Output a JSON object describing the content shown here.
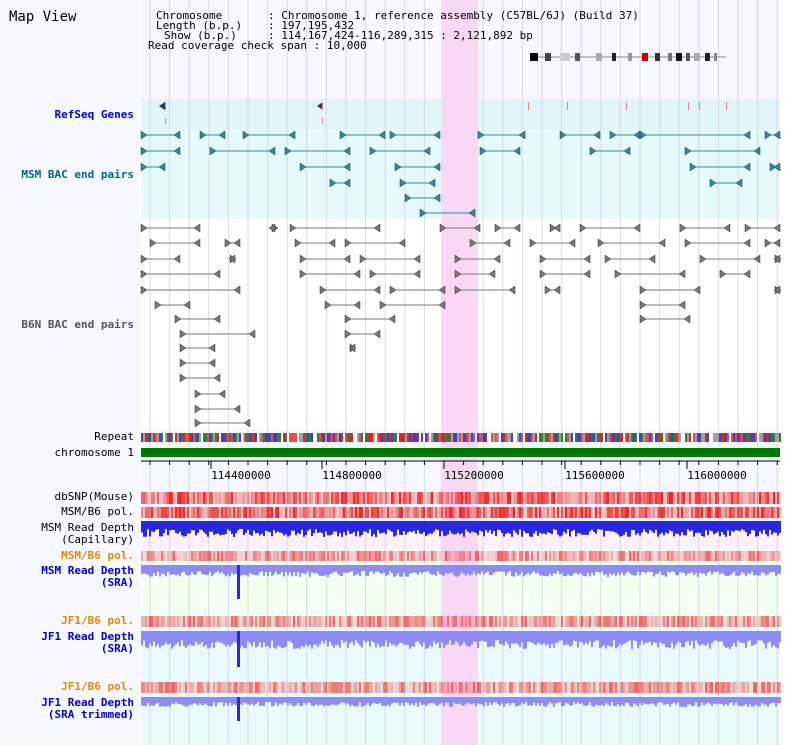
{
  "page_title": "Map View",
  "info": {
    "chromosome_label": "Chromosome",
    "chromosome_value": "Chromosome 1, reference assembly (C57BL/6J) (Build 37)",
    "length_label": "Length (b.p.)",
    "length_value": "197,195,432",
    "show_label": "Show (b.p.)",
    "show_value": "114,167,424-116,289,315 : 2,121,892 bp",
    "coverage_label": "Read coverage check span",
    "coverage_value": "10,000"
  },
  "tracks": {
    "refseq": "RefSeq Genes",
    "msm_bac": "MSM BAC end pairs",
    "b6n_bac": "B6N BAC end pairs",
    "repeat": "Repeat",
    "chromosome": "chromosome 1",
    "dbsnp": "dbSNP(Mouse)",
    "msm_b6_pol_1": "MSM/B6 pol.",
    "msm_read_depth_cap_1": "MSM Read Depth",
    "msm_read_depth_cap_2": "(Capillary)",
    "msm_b6_pol_2": "MSM/B6 pol.",
    "msm_read_depth_sra_1": "MSM Read Depth",
    "msm_read_depth_sra_2": "(SRA)",
    "jf1_b6_pol_1": "JF1/B6 pol.",
    "jf1_read_depth_sra_1": "JF1 Read Depth",
    "jf1_read_depth_sra_2": "(SRA)",
    "jf1_b6_pol_2": "JF1/B6 pol.",
    "jf1_read_depth_trim_1": "JF1 Read Depth",
    "jf1_read_depth_trim_2": "(SRA trimmed)"
  },
  "axis": {
    "ticks": [
      "114400000",
      "114800000",
      "115200000",
      "115600000",
      "116000000"
    ]
  },
  "colors": {
    "refseq_bg": "#e0f4fa",
    "msm_bg": "#e6fafa",
    "highlight": "#f8d8f4",
    "chromosome_bar": "#007700",
    "depth_blue": "#2828e0",
    "depth_light": "#8c8cf4",
    "snp_red": "#ee2222"
  }
}
